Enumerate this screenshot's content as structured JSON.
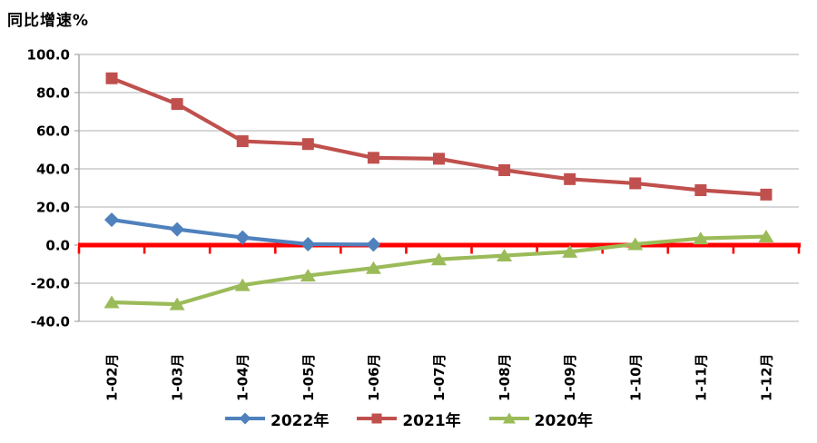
{
  "chart_data": {
    "type": "line",
    "title": "同比增速%",
    "categories": [
      "1-02月",
      "1-03月",
      "1-04月",
      "1-05月",
      "1-06月",
      "1-07月",
      "1-08月",
      "1-09月",
      "1-10月",
      "1-11月",
      "1-12月"
    ],
    "y_ticks": [
      100,
      80,
      60,
      40,
      20,
      0,
      -20,
      -40
    ],
    "y_tick_labels": [
      "100.0",
      "80.0",
      "60.0",
      "40.0",
      "20.0",
      "0.0",
      "-20.0",
      "-40.0"
    ],
    "ylim": [
      -40,
      100
    ],
    "grid": "horizontal",
    "legend_position": "bottom",
    "zero_line_color": "#FF0000",
    "gridline_color": "#BFBFBF",
    "axis_line_color": "#A6A6A6",
    "series": [
      {
        "name": "2022年",
        "marker": "diamond",
        "color": "#4F81BD",
        "values": [
          13.3,
          8.3,
          4.0,
          0.5,
          0.3
        ]
      },
      {
        "name": "2021年",
        "marker": "square",
        "color": "#C0504D",
        "values": [
          87.5,
          74.0,
          54.5,
          53.0,
          45.8,
          45.3,
          39.3,
          34.6,
          32.4,
          28.8,
          26.5
        ]
      },
      {
        "name": "2020年",
        "marker": "triangle",
        "color": "#9BBB59",
        "values": [
          -30.0,
          -31.0,
          -21.0,
          -16.0,
          -12.0,
          -7.5,
          -5.5,
          -3.5,
          0.5,
          3.5,
          4.5
        ]
      }
    ]
  }
}
